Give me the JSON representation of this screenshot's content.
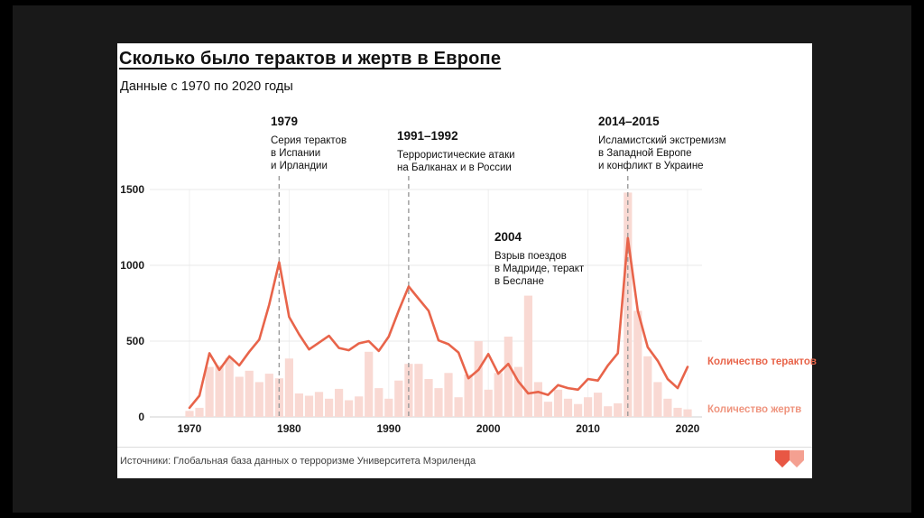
{
  "page": {
    "bg": "#000000",
    "panel_bg": "#191919"
  },
  "card": {
    "title": "Сколько было терактов и жертв в Европе",
    "subtitle": "Данные с 1970 по 2020 годы",
    "source": "Источники: Глобальная база данных о терроризме Университета Мэриленда",
    "logo_color_1": "#e85744",
    "logo_color_2": "#f4a091"
  },
  "legend": {
    "attacks_label": "Количество терактов",
    "victims_label": "Количество жертв",
    "attacks_color": "#e8644a",
    "victims_color": "#ef947e"
  },
  "annotations": [
    {
      "year_label": "1979",
      "lines": [
        "Серия терактов",
        "в Испании",
        "и Ирландии"
      ]
    },
    {
      "year_label": "1991–1992",
      "lines": [
        "Террористические атаки",
        "на Балканах и в России"
      ]
    },
    {
      "year_label": "2004",
      "lines": [
        "Взрыв поездов",
        "в Мадриде, теракт",
        "в Беслане"
      ]
    },
    {
      "year_label": "2014–2015",
      "lines": [
        "Исламистский экстремизм",
        "в Западной Европе",
        "и конфликт в Украине"
      ]
    }
  ],
  "chart_data": {
    "type": "line+bar",
    "title": "Сколько было терактов и жертв в Европе",
    "subtitle": "Данные с 1970 по 2020 годы",
    "ylim": [
      0,
      1500
    ],
    "yticks": [
      0,
      500,
      1000,
      1500
    ],
    "xticks": [
      1970,
      1980,
      1990,
      2000,
      2010,
      2020
    ],
    "dashed_years": [
      1979,
      1992,
      2014
    ],
    "grid": true,
    "legend_position": "right",
    "x": [
      1970,
      1971,
      1972,
      1973,
      1974,
      1975,
      1976,
      1977,
      1978,
      1979,
      1980,
      1981,
      1982,
      1983,
      1984,
      1985,
      1986,
      1987,
      1988,
      1989,
      1990,
      1991,
      1992,
      1993,
      1994,
      1995,
      1996,
      1997,
      1998,
      1999,
      2000,
      2001,
      2002,
      2003,
      2004,
      2005,
      2006,
      2007,
      2008,
      2009,
      2010,
      2011,
      2012,
      2013,
      2014,
      2015,
      2016,
      2017,
      2018,
      2019,
      2020
    ],
    "series": [
      {
        "name": "Количество терактов",
        "type": "line",
        "color": "#e8644a",
        "values": [
          60,
          140,
          420,
          310,
          400,
          340,
          430,
          510,
          740,
          1020,
          660,
          545,
          445,
          490,
          535,
          455,
          440,
          485,
          500,
          435,
          530,
          700,
          860,
          780,
          700,
          505,
          480,
          425,
          255,
          310,
          415,
          285,
          350,
          235,
          155,
          165,
          145,
          210,
          190,
          180,
          250,
          240,
          340,
          420,
          1180,
          700,
          460,
          370,
          250,
          190,
          330
        ]
      },
      {
        "name": "Количество жертв",
        "type": "bar",
        "color": "#f9d9d3",
        "values": [
          40,
          60,
          330,
          340,
          390,
          265,
          305,
          230,
          285,
          255,
          385,
          155,
          140,
          165,
          120,
          185,
          110,
          135,
          430,
          190,
          120,
          240,
          350,
          350,
          250,
          190,
          290,
          130,
          280,
          500,
          180,
          290,
          530,
          330,
          800,
          230,
          100,
          180,
          120,
          85,
          130,
          160,
          70,
          90,
          1480,
          700,
          400,
          230,
          120,
          60,
          50
        ]
      }
    ]
  }
}
